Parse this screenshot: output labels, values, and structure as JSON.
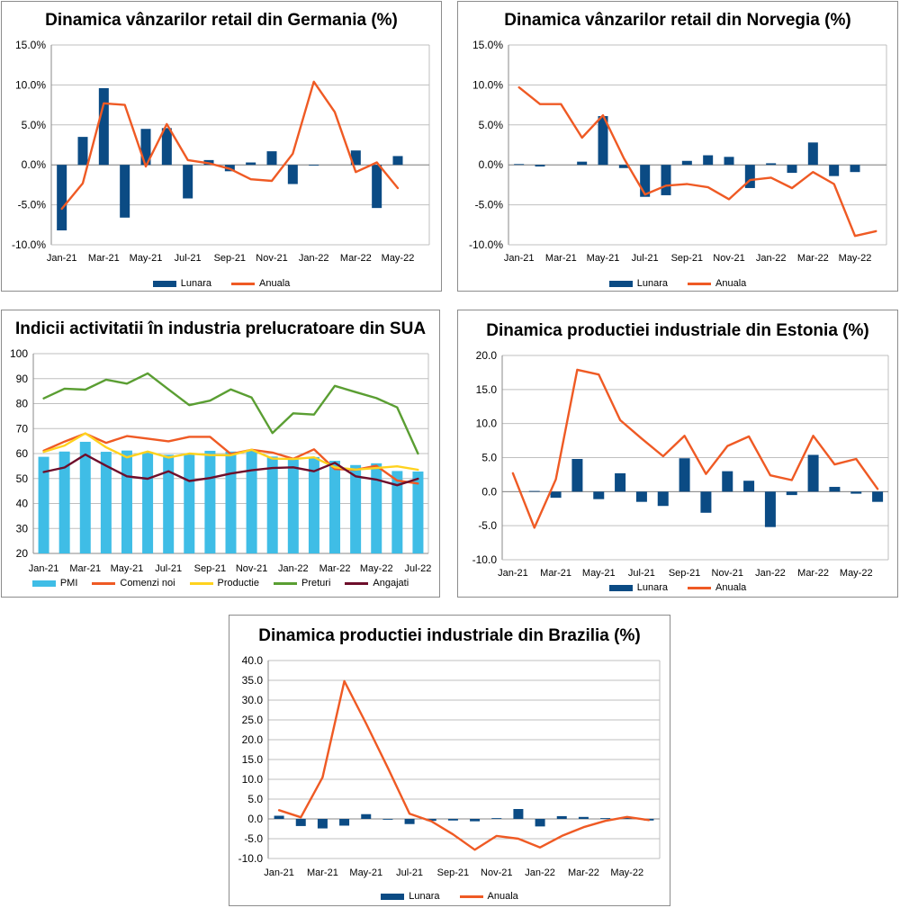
{
  "colors": {
    "bar_blue": "#0b4b84",
    "line_orange": "#ef5a24",
    "pmi_cyan": "#3fbde6",
    "yellow": "#ffd21e",
    "green": "#5a9e32",
    "maroon": "#6e0e2b",
    "grid": "#bfbfbf"
  },
  "chart_data": [
    {
      "id": "germania",
      "type": "bar+line",
      "title": "Dinamica vânzarilor retail din Germania (%)",
      "categories": [
        "Jan-21",
        "Feb-21",
        "Mar-21",
        "Apr-21",
        "May-21",
        "Jun-21",
        "Jul-21",
        "Aug-21",
        "Sep-21",
        "Oct-21",
        "Nov-21",
        "Dec-21",
        "Jan-22",
        "Feb-22",
        "Mar-22",
        "Apr-22",
        "May-22",
        "Jun-22"
      ],
      "x_tick_labels": [
        "Jan-21",
        "Mar-21",
        "May-21",
        "Jul-21",
        "Sep-21",
        "Nov-21",
        "Jan-22",
        "Mar-22",
        "May-22"
      ],
      "yticks": [
        "15.0%",
        "10.0%",
        "5.0%",
        "0.0%",
        "-5.0%",
        "-10.0%"
      ],
      "ylim": [
        -10,
        15
      ],
      "series": [
        {
          "name": "Lunara",
          "kind": "bar",
          "values": [
            -8.2,
            3.5,
            9.6,
            -6.6,
            4.5,
            4.6,
            -4.2,
            0.6,
            -0.8,
            0.3,
            1.7,
            -2.4,
            -0.1,
            null,
            1.8,
            -5.4,
            1.1,
            null
          ]
        },
        {
          "name": "Anuala",
          "kind": "line",
          "values": [
            -5.5,
            -2.3,
            7.7,
            7.5,
            -0.2,
            5.1,
            0.6,
            0.2,
            -0.5,
            -1.8,
            -2.0,
            1.4,
            10.4,
            6.6,
            -0.9,
            0.3,
            -2.9,
            null
          ]
        }
      ],
      "legend": [
        "Lunara",
        "Anuala"
      ]
    },
    {
      "id": "norvegia",
      "type": "bar+line",
      "title": "Dinamica vânzarilor retail din Norvegia (%)",
      "categories": [
        "Jan-21",
        "Feb-21",
        "Mar-21",
        "Apr-21",
        "May-21",
        "Jun-21",
        "Jul-21",
        "Aug-21",
        "Sep-21",
        "Oct-21",
        "Nov-21",
        "Dec-21",
        "Jan-22",
        "Feb-22",
        "Mar-22",
        "Apr-22",
        "May-22",
        "Jun-22"
      ],
      "x_tick_labels": [
        "Jan-21",
        "Mar-21",
        "May-21",
        "Jul-21",
        "Sep-21",
        "Nov-21",
        "Jan-22",
        "Mar-22",
        "May-22"
      ],
      "yticks": [
        "15.0%",
        "10.0%",
        "5.0%",
        "0.0%",
        "-5.0%",
        "-10.0%"
      ],
      "ylim": [
        -10,
        15
      ],
      "series": [
        {
          "name": "Lunara",
          "kind": "bar",
          "values": [
            0.1,
            -0.2,
            null,
            0.4,
            6.1,
            -0.4,
            -4.0,
            -3.8,
            0.5,
            1.2,
            1.0,
            -2.9,
            0.2,
            -1.0,
            2.8,
            -1.4,
            -0.9,
            null
          ]
        },
        {
          "name": "Anuala",
          "kind": "line",
          "values": [
            9.7,
            7.6,
            7.6,
            3.4,
            6.2,
            0.8,
            -3.7,
            -2.6,
            -2.4,
            -2.8,
            -4.3,
            -1.9,
            -1.6,
            -2.9,
            -0.9,
            -2.4,
            -8.9,
            -8.3
          ]
        }
      ],
      "legend": [
        "Lunara",
        "Anuala"
      ]
    },
    {
      "id": "sua",
      "type": "bar+line",
      "title": "Indicii activitatii în industria prelucratoare din SUA",
      "categories": [
        "Jan-21",
        "Feb-21",
        "Mar-21",
        "Apr-21",
        "May-21",
        "Jun-21",
        "Jul-21",
        "Aug-21",
        "Sep-21",
        "Oct-21",
        "Nov-21",
        "Dec-21",
        "Jan-22",
        "Feb-22",
        "Mar-22",
        "Apr-22",
        "May-22",
        "Jun-22",
        "Jul-22"
      ],
      "x_tick_labels": [
        "Jan-21",
        "Mar-21",
        "May-21",
        "Jul-21",
        "Sep-21",
        "Nov-21",
        "Jan-22",
        "Mar-22",
        "May-22",
        "Jul-22"
      ],
      "yticks": [
        "100",
        "90",
        "80",
        "70",
        "60",
        "50",
        "40",
        "30",
        "20"
      ],
      "ylim": [
        20,
        100
      ],
      "series": [
        {
          "name": "PMI",
          "kind": "bar",
          "values": [
            58.7,
            60.8,
            64.7,
            60.7,
            61.2,
            60.6,
            59.5,
            59.9,
            61.1,
            60.8,
            61.1,
            58.8,
            57.6,
            58.6,
            57.1,
            55.4,
            56.1,
            53.0,
            52.8
          ]
        },
        {
          "name": "Comenzi noi",
          "kind": "line",
          "values": [
            61.1,
            64.8,
            68.0,
            64.3,
            67.0,
            66.0,
            64.9,
            66.7,
            66.7,
            59.8,
            61.5,
            60.4,
            57.9,
            61.7,
            53.8,
            53.5,
            55.1,
            49.2,
            48.0
          ]
        },
        {
          "name": "Productie",
          "kind": "line",
          "values": [
            60.7,
            63.2,
            68.1,
            62.5,
            58.5,
            60.8,
            58.4,
            60.0,
            59.4,
            59.3,
            61.5,
            58.0,
            57.8,
            58.5,
            54.5,
            53.6,
            54.2,
            54.9,
            53.5
          ]
        },
        {
          "name": "Preturi",
          "kind": "line",
          "values": [
            82.1,
            86.0,
            85.6,
            89.6,
            88.0,
            92.1,
            85.7,
            79.4,
            81.2,
            85.7,
            82.4,
            68.2,
            76.1,
            75.6,
            87.1,
            84.6,
            82.2,
            78.5,
            60.0
          ]
        },
        {
          "name": "Angajati",
          "kind": "line",
          "values": [
            52.6,
            54.4,
            59.6,
            55.1,
            50.9,
            49.9,
            52.9,
            49.0,
            50.2,
            52.0,
            53.3,
            54.2,
            54.5,
            52.9,
            56.3,
            50.9,
            49.6,
            47.3,
            49.9
          ]
        }
      ],
      "legend": [
        "PMI",
        "Comenzi noi",
        "Productie",
        "Preturi",
        "Angajati"
      ]
    },
    {
      "id": "estonia",
      "type": "bar+line",
      "title": "Dinamica productiei industriale din Estonia (%)",
      "categories": [
        "Jan-21",
        "Feb-21",
        "Mar-21",
        "Apr-21",
        "May-21",
        "Jun-21",
        "Jul-21",
        "Aug-21",
        "Sep-21",
        "Oct-21",
        "Nov-21",
        "Dec-21",
        "Jan-22",
        "Feb-22",
        "Mar-22",
        "Apr-22",
        "May-22",
        "Jun-22"
      ],
      "x_tick_labels": [
        "Jan-21",
        "Mar-21",
        "May-21",
        "Jul-21",
        "Sep-21",
        "Nov-21",
        "Jan-22",
        "Mar-22",
        "May-22"
      ],
      "yticks": [
        "20.0",
        "15.0",
        "10.0",
        "5.0",
        "0.0",
        "-5.0",
        "-10.0"
      ],
      "ylim": [
        -10,
        20
      ],
      "series": [
        {
          "name": "Lunara",
          "kind": "bar",
          "values": [
            null,
            0.1,
            -0.9,
            4.8,
            -1.1,
            2.7,
            -1.5,
            -2.1,
            4.9,
            -3.1,
            3.0,
            1.6,
            -5.2,
            -0.5,
            5.4,
            0.7,
            -0.3,
            -1.5
          ]
        },
        {
          "name": "Anuala",
          "kind": "line",
          "values": [
            2.7,
            -5.3,
            1.8,
            17.9,
            17.2,
            10.5,
            7.8,
            5.2,
            8.2,
            2.6,
            6.7,
            8.1,
            2.4,
            1.7,
            8.2,
            4.0,
            4.8,
            0.4
          ]
        }
      ],
      "legend": [
        "Lunara",
        "Anuala"
      ]
    },
    {
      "id": "brazilia",
      "type": "bar+line",
      "title": "Dinamica productiei industriale din Brazilia (%)",
      "categories": [
        "Jan-21",
        "Feb-21",
        "Mar-21",
        "Apr-21",
        "May-21",
        "Jun-21",
        "Jul-21",
        "Aug-21",
        "Sep-21",
        "Oct-21",
        "Nov-21",
        "Dec-21",
        "Jan-22",
        "Feb-22",
        "Mar-22",
        "Apr-22",
        "May-22",
        "Jun-22"
      ],
      "x_tick_labels": [
        "Jan-21",
        "Mar-21",
        "May-21",
        "Jul-21",
        "Sep-21",
        "Nov-21",
        "Jan-22",
        "Mar-22",
        "May-22"
      ],
      "yticks": [
        "40.0",
        "35.0",
        "30.0",
        "25.0",
        "20.0",
        "15.0",
        "10.0",
        "5.0",
        "0.0",
        "-5.0",
        "-10.0"
      ],
      "ylim": [
        -10,
        40
      ],
      "series": [
        {
          "name": "Lunara",
          "kind": "bar",
          "values": [
            0.8,
            -1.8,
            -2.4,
            -1.7,
            1.2,
            -0.2,
            -1.3,
            -0.5,
            -0.4,
            -0.6,
            0.2,
            2.5,
            -1.9,
            0.7,
            0.5,
            0.2,
            0.3,
            -0.4
          ]
        },
        {
          "name": "Anuala",
          "kind": "line",
          "values": [
            2.2,
            0.4,
            10.5,
            34.8,
            24.1,
            12.9,
            1.3,
            -0.6,
            -3.9,
            -7.8,
            -4.3,
            -5.0,
            -7.2,
            -4.3,
            -2.1,
            -0.5,
            0.5,
            -0.3
          ]
        }
      ],
      "legend": [
        "Lunara",
        "Anuala"
      ]
    }
  ]
}
